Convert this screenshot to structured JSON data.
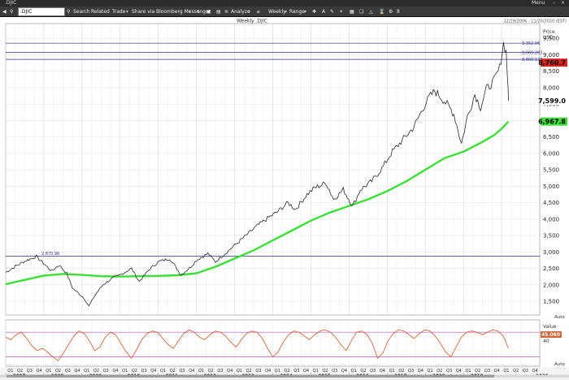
{
  "window": {
    "title": ".DJIC",
    "controls": {
      "menu_label": "Menu"
    }
  },
  "toolbar": {
    "symbol_value": ".DJIC",
    "search_label": "Search",
    "related_label": "Related",
    "trade_label": "Trade",
    "share_label": "Share via Bloomberg Messenger",
    "analyze_label": "Analyze",
    "period_label": "Weekly",
    "range_label": "Range",
    "counter": "8"
  },
  "chart_data": {
    "type": "line",
    "title": "Weekly .DJIC",
    "date_range": "12/29/2006 - 11/20/2020 (EST)",
    "axis_title": [
      "Price",
      "USD"
    ],
    "y_ticks": [
      1500,
      2000,
      2500,
      3000,
      3500,
      4000,
      4500,
      5000,
      5500,
      6000,
      6500,
      7000,
      7500,
      8000,
      8500,
      9000,
      9500
    ],
    "y_tick_labels": [
      "1,500",
      "2,000",
      "2,500",
      "3,000",
      "3,500",
      "4,000",
      "4,500",
      "5,000",
      "5,500",
      "6,000",
      "6,500",
      "7,000",
      "7,500",
      "8,000",
      "8,500",
      "9,000",
      "9,500"
    ],
    "ylim": [
      1080,
      9950
    ],
    "x_years": [
      "2007",
      "2008",
      "2009",
      "2010",
      "2011",
      "2012",
      "2013",
      "2014",
      "2015",
      "2016",
      "2017",
      "2018",
      "2019",
      "2020"
    ],
    "quarter_labels": [
      "Q1",
      "Q2",
      "Q3",
      "Q4"
    ],
    "grid": true,
    "reference_lines": [
      {
        "value": 2870.96,
        "label": "2,870.96"
      },
      {
        "value": 9352.06,
        "label": "9,352.06"
      },
      {
        "value": 9069.203,
        "label": "9,069.203"
      },
      {
        "value": 8860.138,
        "label": "8,860.138"
      }
    ],
    "last_price_label": "7,599.0",
    "prev_price_label": "8,760.7",
    "ma_label": "6,967.8",
    "price_path": [
      [
        2007.0,
        2380
      ],
      [
        2007.25,
        2560
      ],
      [
        2007.5,
        2720
      ],
      [
        2007.8,
        2860
      ],
      [
        2007.95,
        2700
      ],
      [
        2008.2,
        2420
      ],
      [
        2008.4,
        2600
      ],
      [
        2008.6,
        2350
      ],
      [
        2008.75,
        1900
      ],
      [
        2008.9,
        1750
      ],
      [
        2009.05,
        1600
      ],
      [
        2009.18,
        1350
      ],
      [
        2009.35,
        1700
      ],
      [
        2009.55,
        2000
      ],
      [
        2009.8,
        2200
      ],
      [
        2010.0,
        2300
      ],
      [
        2010.3,
        2500
      ],
      [
        2010.5,
        2100
      ],
      [
        2010.75,
        2450
      ],
      [
        2011.0,
        2700
      ],
      [
        2011.3,
        2800
      ],
      [
        2011.6,
        2300
      ],
      [
        2011.85,
        2550
      ],
      [
        2012.0,
        2750
      ],
      [
        2012.3,
        2950
      ],
      [
        2012.5,
        2700
      ],
      [
        2012.8,
        3000
      ],
      [
        2013.0,
        3200
      ],
      [
        2013.3,
        3500
      ],
      [
        2013.6,
        3800
      ],
      [
        2013.9,
        4050
      ],
      [
        2014.1,
        4200
      ],
      [
        2014.4,
        4500
      ],
      [
        2014.6,
        4300
      ],
      [
        2014.9,
        4750
      ],
      [
        2015.1,
        4950
      ],
      [
        2015.4,
        5100
      ],
      [
        2015.6,
        4600
      ],
      [
        2015.85,
        4900
      ],
      [
        2016.1,
        4400
      ],
      [
        2016.3,
        4900
      ],
      [
        2016.6,
        5150
      ],
      [
        2016.9,
        5600
      ],
      [
        2017.1,
        6000
      ],
      [
        2017.4,
        6400
      ],
      [
        2017.7,
        6800
      ],
      [
        2017.95,
        7400
      ],
      [
        2018.1,
        7700
      ],
      [
        2018.25,
        7900
      ],
      [
        2018.5,
        7600
      ],
      [
        2018.75,
        7200
      ],
      [
        2018.95,
        6300
      ],
      [
        2019.1,
        7100
      ],
      [
        2019.3,
        7800
      ],
      [
        2019.45,
        7400
      ],
      [
        2019.6,
        7950
      ],
      [
        2019.8,
        8200
      ],
      [
        2019.95,
        8600
      ],
      [
        2020.05,
        9350
      ],
      [
        2020.12,
        9100
      ],
      [
        2020.16,
        8200
      ],
      [
        2020.18,
        7600
      ]
    ],
    "ma_path": [
      [
        2007.0,
        2020
      ],
      [
        2007.5,
        2150
      ],
      [
        2008.0,
        2280
      ],
      [
        2008.5,
        2330
      ],
      [
        2009.0,
        2300
      ],
      [
        2009.5,
        2260
      ],
      [
        2010.0,
        2250
      ],
      [
        2010.5,
        2260
      ],
      [
        2011.0,
        2270
      ],
      [
        2011.5,
        2290
      ],
      [
        2012.0,
        2350
      ],
      [
        2012.5,
        2550
      ],
      [
        2013.0,
        2800
      ],
      [
        2013.5,
        3050
      ],
      [
        2014.0,
        3350
      ],
      [
        2014.5,
        3650
      ],
      [
        2015.0,
        3950
      ],
      [
        2015.5,
        4200
      ],
      [
        2016.0,
        4400
      ],
      [
        2016.5,
        4600
      ],
      [
        2017.0,
        4850
      ],
      [
        2017.5,
        5150
      ],
      [
        2018.0,
        5500
      ],
      [
        2018.5,
        5850
      ],
      [
        2019.0,
        6050
      ],
      [
        2019.5,
        6350
      ],
      [
        2019.8,
        6550
      ],
      [
        2020.0,
        6750
      ],
      [
        2020.18,
        6968
      ]
    ],
    "indicator": {
      "title": "Value",
      "upper_ref": 70,
      "lower_ref": 30,
      "value_label": "45.060",
      "tick_label": "40",
      "ylim": [
        15,
        90
      ],
      "values": [
        62,
        58,
        66,
        70,
        60,
        48,
        40,
        44,
        38,
        30,
        24,
        36,
        50,
        64,
        72,
        68,
        56,
        40,
        46,
        62,
        70,
        66,
        52,
        38,
        28,
        42,
        58,
        68,
        72,
        70,
        60,
        50,
        44,
        56,
        68,
        74,
        70,
        62,
        58,
        66,
        72,
        70,
        64,
        54,
        46,
        58,
        68,
        72,
        70,
        60,
        44,
        30,
        38,
        54,
        66,
        72,
        70,
        64,
        58,
        66,
        72,
        74,
        70,
        62,
        50,
        40,
        56,
        70,
        72,
        66,
        52,
        28,
        36,
        56,
        68,
        74,
        72,
        66,
        60,
        68,
        74,
        72,
        64,
        52,
        38,
        30,
        46,
        62,
        70,
        72,
        70,
        66,
        70,
        74,
        72,
        64,
        44
      ]
    },
    "footer_label": "Old Data Period",
    "footer_year_extra": "2020",
    "auto_label": "Auto"
  },
  "colors": {
    "price": "#2a2a2a",
    "ma": "#3ae035",
    "indicator": "#d2673a",
    "ref_line": "#2e2f8a",
    "last_tag": "#000000",
    "prev_tag": "#d6251c",
    "ma_tag": "#3ae035"
  }
}
